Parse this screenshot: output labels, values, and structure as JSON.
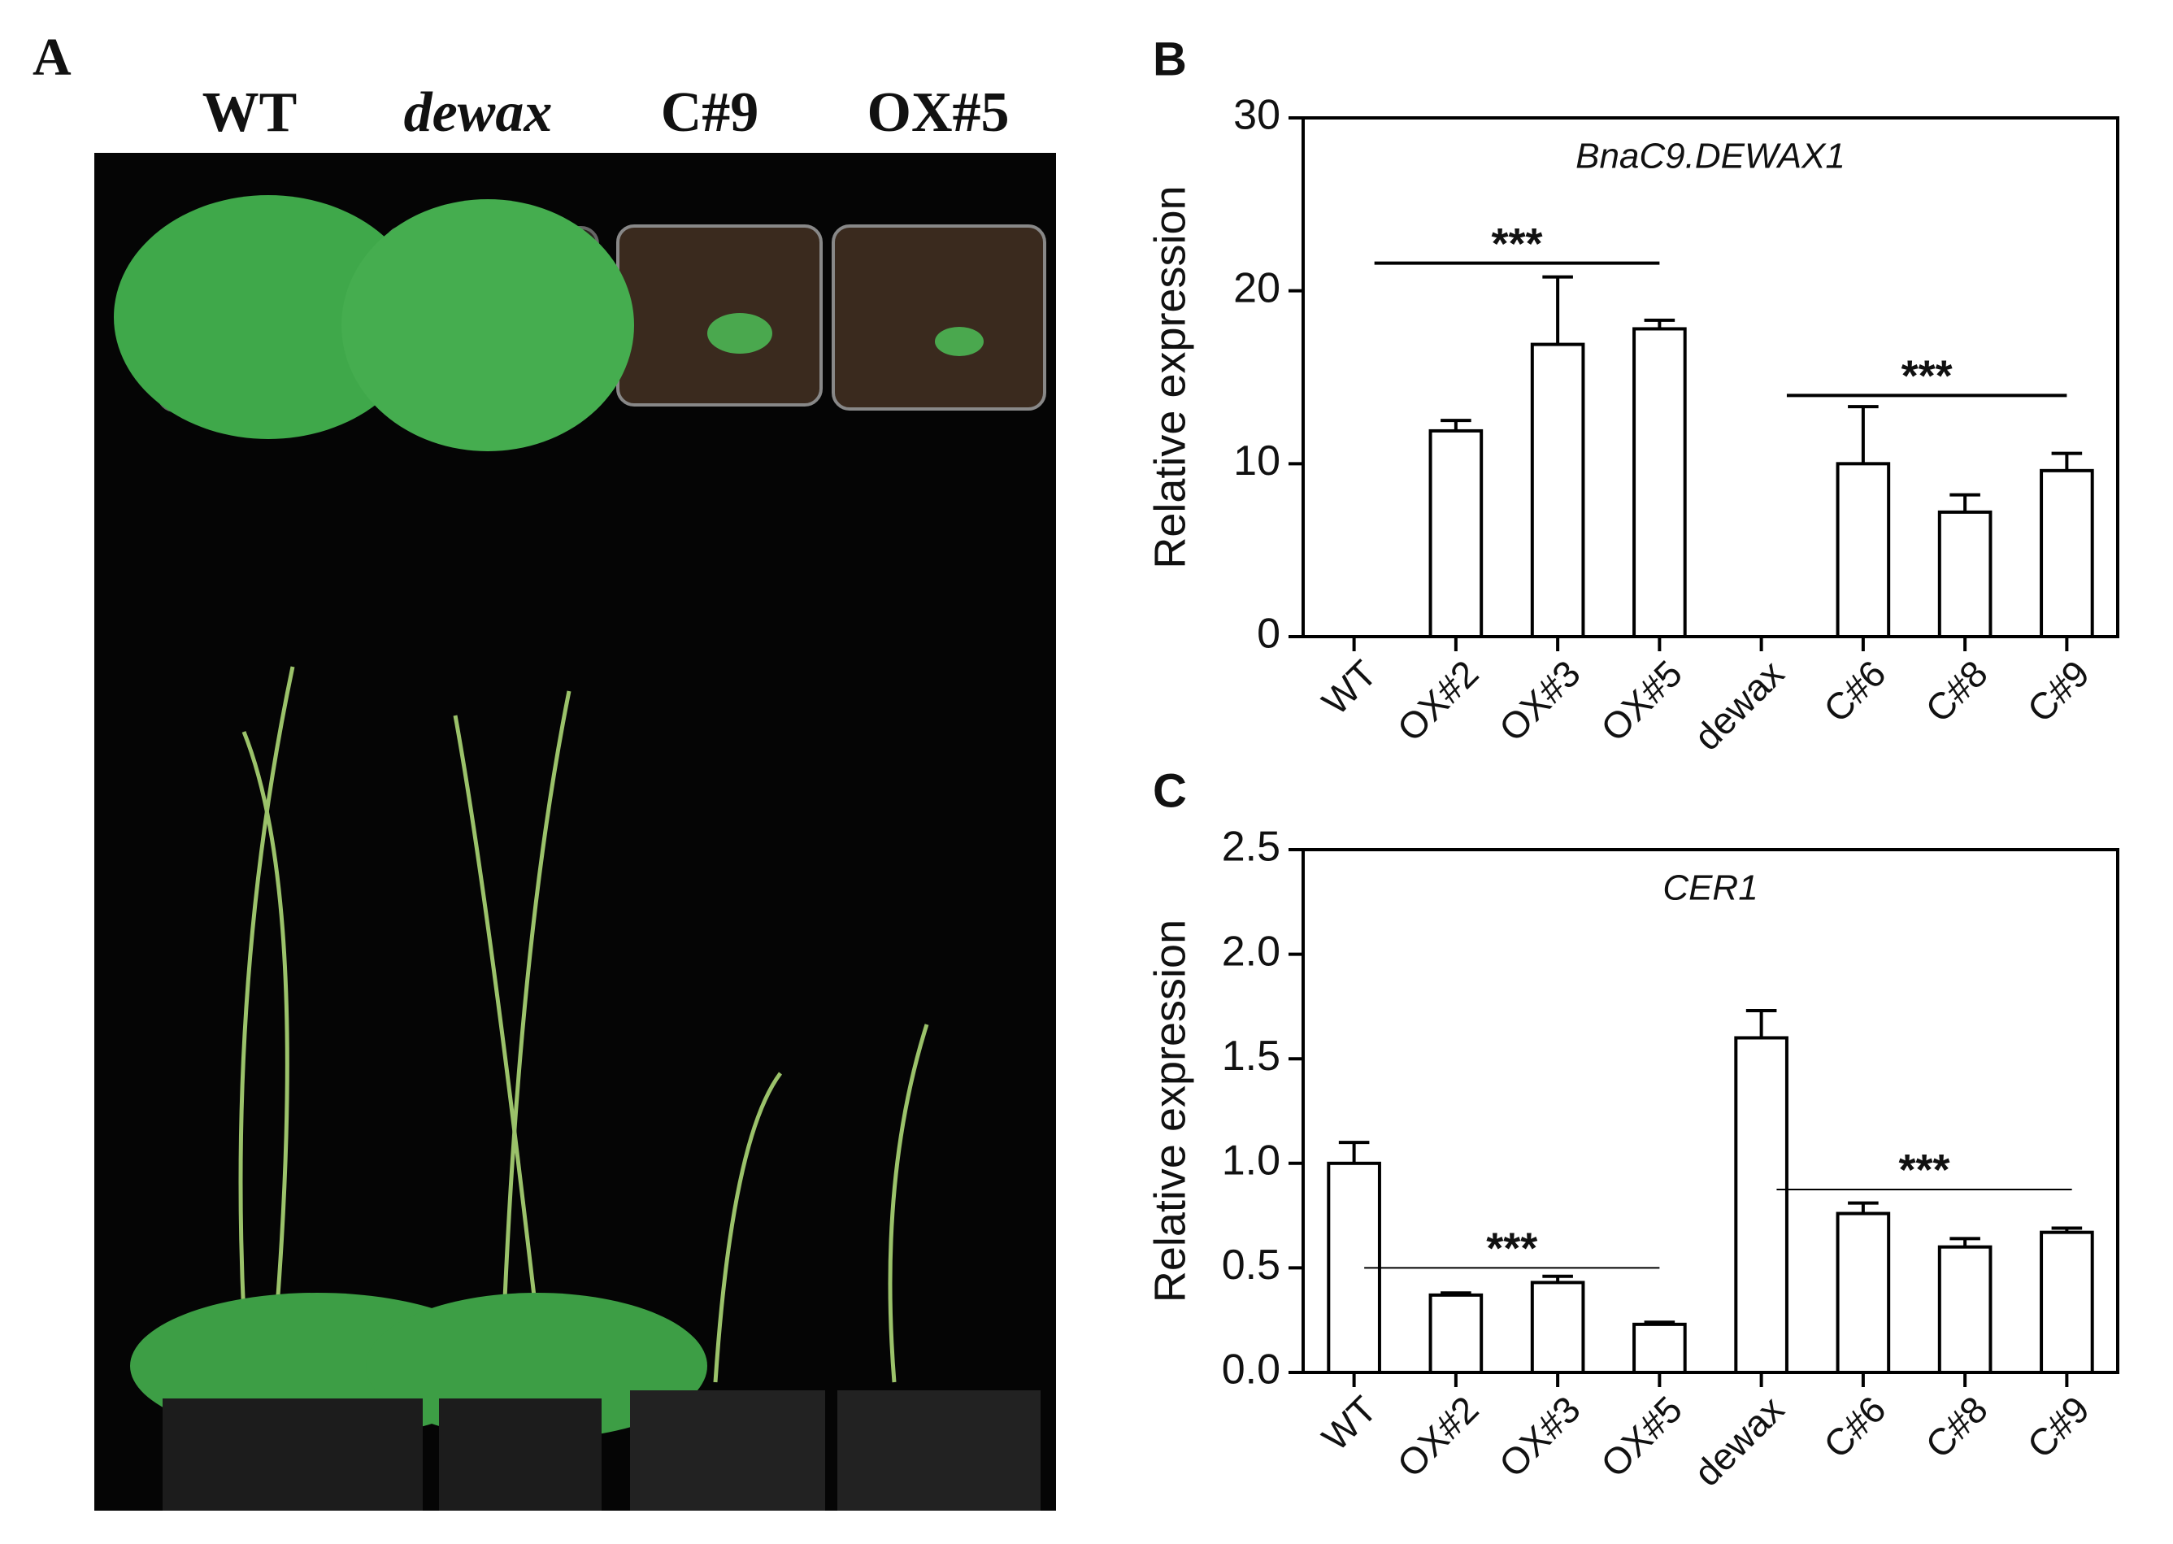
{
  "panel_a": {
    "label": "A",
    "columns": [
      "WT",
      "dewax",
      "C#9",
      "OX#5"
    ]
  },
  "chart_data": [
    {
      "type": "bar",
      "panel_label": "B",
      "title": "BnaC9.DEWAX1",
      "y_label": "Relative expression",
      "categories": [
        "WT",
        "OX#2",
        "OX#3",
        "OX#5",
        "dewax",
        "C#6",
        "C#8",
        "C#9"
      ],
      "values": [
        0,
        11.9,
        16.9,
        17.8,
        0,
        10,
        7.2,
        9.6
      ],
      "errors": [
        null,
        0.6,
        3.9,
        0.5,
        null,
        3.3,
        1.0,
        1.0
      ],
      "color": "#ffffff",
      "ylim": [
        0,
        30
      ],
      "yticks": [
        0,
        10,
        20,
        30
      ],
      "annotations": [
        "***",
        "***"
      ]
    },
    {
      "type": "bar",
      "panel_label": "C",
      "title": "CER1",
      "y_label": "Relative expression",
      "categories": [
        "WT",
        "OX#2",
        "OX#3",
        "OX#5",
        "dewax",
        "C#6",
        "C#8",
        "C#9"
      ],
      "values": [
        1.0,
        0.37,
        0.43,
        0.23,
        1.6,
        0.76,
        0.6,
        0.67
      ],
      "errors": [
        0.1,
        0.01,
        0.03,
        0.01,
        0.13,
        0.05,
        0.04,
        0.02
      ],
      "color": "#ffffff",
      "ylim": [
        0,
        2.5
      ],
      "yticks": [
        {
          "value": 0,
          "label": "0.0"
        },
        0.5,
        {
          "value": 1,
          "label": "1.0"
        },
        1.5,
        {
          "value": 2,
          "label": "2.0"
        },
        2.5
      ],
      "annotations": [
        "***",
        "***"
      ]
    }
  ]
}
